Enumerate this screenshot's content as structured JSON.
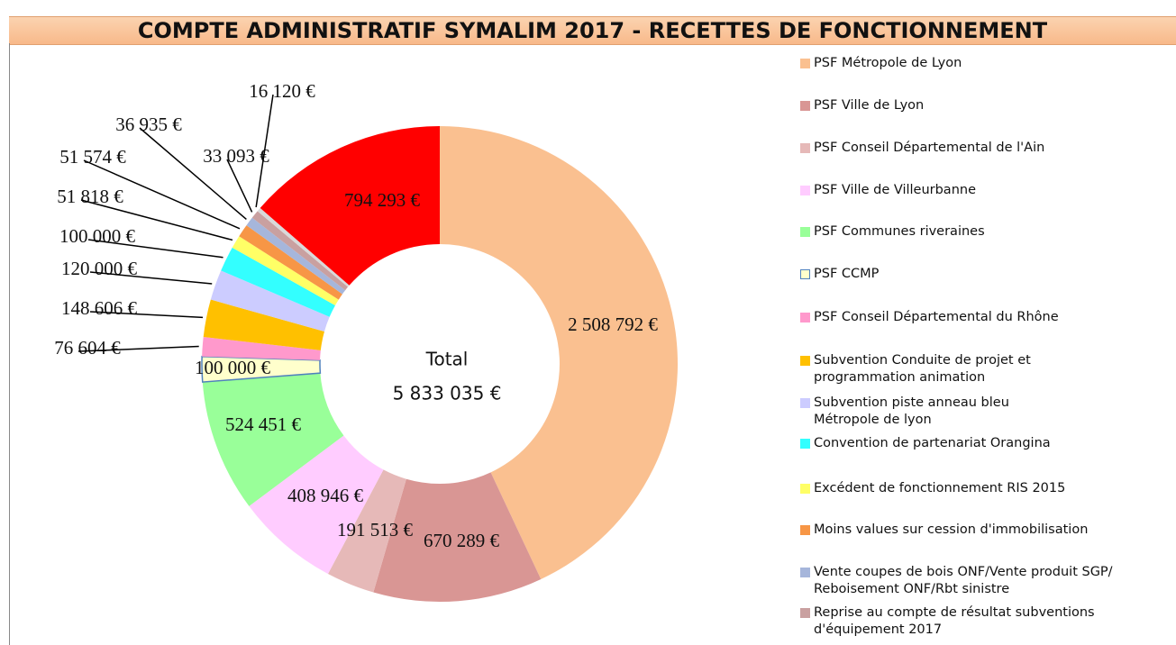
{
  "chart_data": {
    "type": "donut",
    "title": "COMPTE ADMINISTRATIF SYMALIM 2017 - RECETTES DE FONCTIONNEMENT",
    "center_label": "Total",
    "total_label": "5 833 035 €",
    "categories": [
      "PSF Métropole de Lyon",
      "PSF Ville de Lyon",
      "PSF Conseil Départemental de l'Ain",
      "PSF Ville de Villeurbanne",
      "PSF Communes riveraines",
      "PSF CCMP",
      "PSF Conseil Départemental du Rhône",
      "Subvention Conduite de projet et programmation animation",
      "Subvention piste anneau bleu Métropole de lyon",
      "Convention de partenariat Orangina",
      "Excédent de fonctionnement RIS 2015",
      "Moins values sur cession d'immobilisation",
      "Vente coupes de bois ONF/Vente produit SGP/ Reboisement ONF/Rbt sinistre",
      "Reprise au compte de résultat subventions d'équipement 2017",
      null,
      null
    ],
    "values": [
      2508792,
      670289,
      191513,
      408946,
      524451,
      100000,
      76604,
      148606,
      120000,
      100000,
      51818,
      51574,
      36935,
      33093,
      16120,
      794293
    ],
    "value_labels": [
      "2 508 792 €",
      "670 289 €",
      "191 513 €",
      "408 946 €",
      "524 451 €",
      "100 000 €",
      "76 604 €",
      "148 606 €",
      "120 000 €",
      "100 000 €",
      "51 818 €",
      "51 574 €",
      "36 935 €",
      "33 093 €",
      "16 120 €",
      "794 293 €"
    ],
    "colors": [
      "#fac090",
      "#d99694",
      "#e6b9b8",
      "#ffccff",
      "#99ff99",
      "#ffffcc",
      "#ff99cc",
      "#ffc000",
      "#ccccff",
      "#33ffff",
      "#ffff66",
      "#f79646",
      "#a6b6db",
      "#c9a0a0",
      "#d9d9d9",
      "#ff0000"
    ]
  }
}
